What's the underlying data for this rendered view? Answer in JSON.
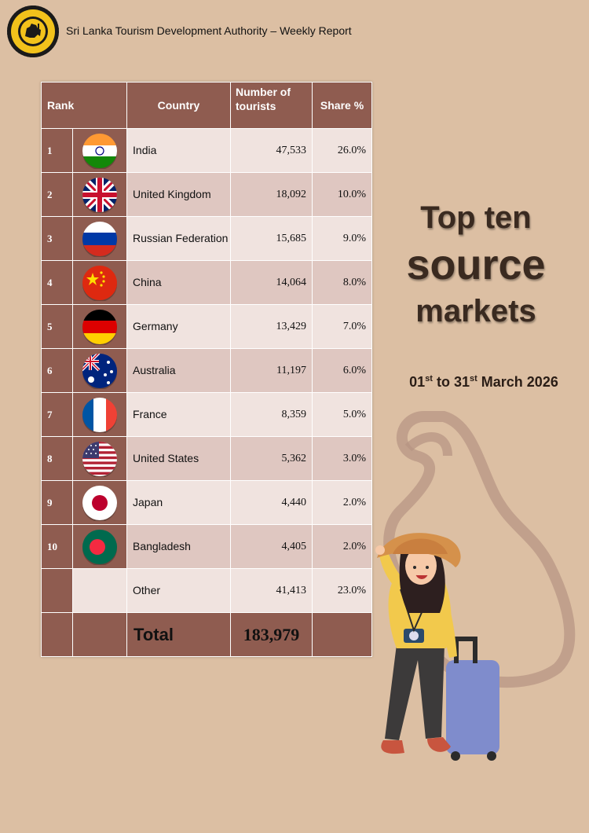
{
  "header": {
    "logo_icon": "sltda-lion-emblem-icon",
    "title": "Sri Lanka Tourism Development Authority – Weekly Report"
  },
  "table": {
    "headers": {
      "rank": "Rank",
      "country": "Country",
      "number": "Number of tourists",
      "share": "Share %"
    },
    "rows": [
      {
        "rank": "1",
        "flag": "india-flag-icon",
        "country": "India",
        "number": "47,533",
        "share": "26.0%"
      },
      {
        "rank": "2",
        "flag": "united-kingdom-flag-icon",
        "country": "United Kingdom",
        "number": "18,092",
        "share": "10.0%"
      },
      {
        "rank": "3",
        "flag": "russia-flag-icon",
        "country": "Russian Federation",
        "number": "15,685",
        "share": "9.0%"
      },
      {
        "rank": "4",
        "flag": "china-flag-icon",
        "country": "China",
        "number": "14,064",
        "share": "8.0%"
      },
      {
        "rank": "5",
        "flag": "germany-flag-icon",
        "country": "Germany",
        "number": "13,429",
        "share": "7.0%"
      },
      {
        "rank": "6",
        "flag": "australia-flag-icon",
        "country": "Australia",
        "number": "11,197",
        "share": "6.0%"
      },
      {
        "rank": "7",
        "flag": "france-flag-icon",
        "country": "France",
        "number": "8,359",
        "share": "5.0%"
      },
      {
        "rank": "8",
        "flag": "united-states-flag-icon",
        "country": "United States",
        "number": "5,362",
        "share": "3.0%"
      },
      {
        "rank": "9",
        "flag": "japan-flag-icon",
        "country": "Japan",
        "number": "4,440",
        "share": "2.0%"
      },
      {
        "rank": "10",
        "flag": "bangladesh-flag-icon",
        "country": "Bangladesh",
        "number": "4,405",
        "share": "2.0%"
      }
    ],
    "other": {
      "label": "Other",
      "number": "41,413",
      "share": "23.0%"
    },
    "total": {
      "label": "Total",
      "number": "183,979"
    }
  },
  "title": {
    "line1": "Top ten",
    "line2": "source",
    "line3": "markets"
  },
  "date": {
    "day_from": "01",
    "sup_from": "st",
    "mid": " to ",
    "day_to": "31",
    "sup_to": "st",
    "month_year": " March 2026"
  },
  "colors": {
    "background": "#dcbfa3",
    "table_dark": "#8f5c50",
    "row_light": "#f0e3df",
    "row_mid": "#dfc7c1"
  },
  "illustration": "traveler-woman-with-suitcase-icon"
}
